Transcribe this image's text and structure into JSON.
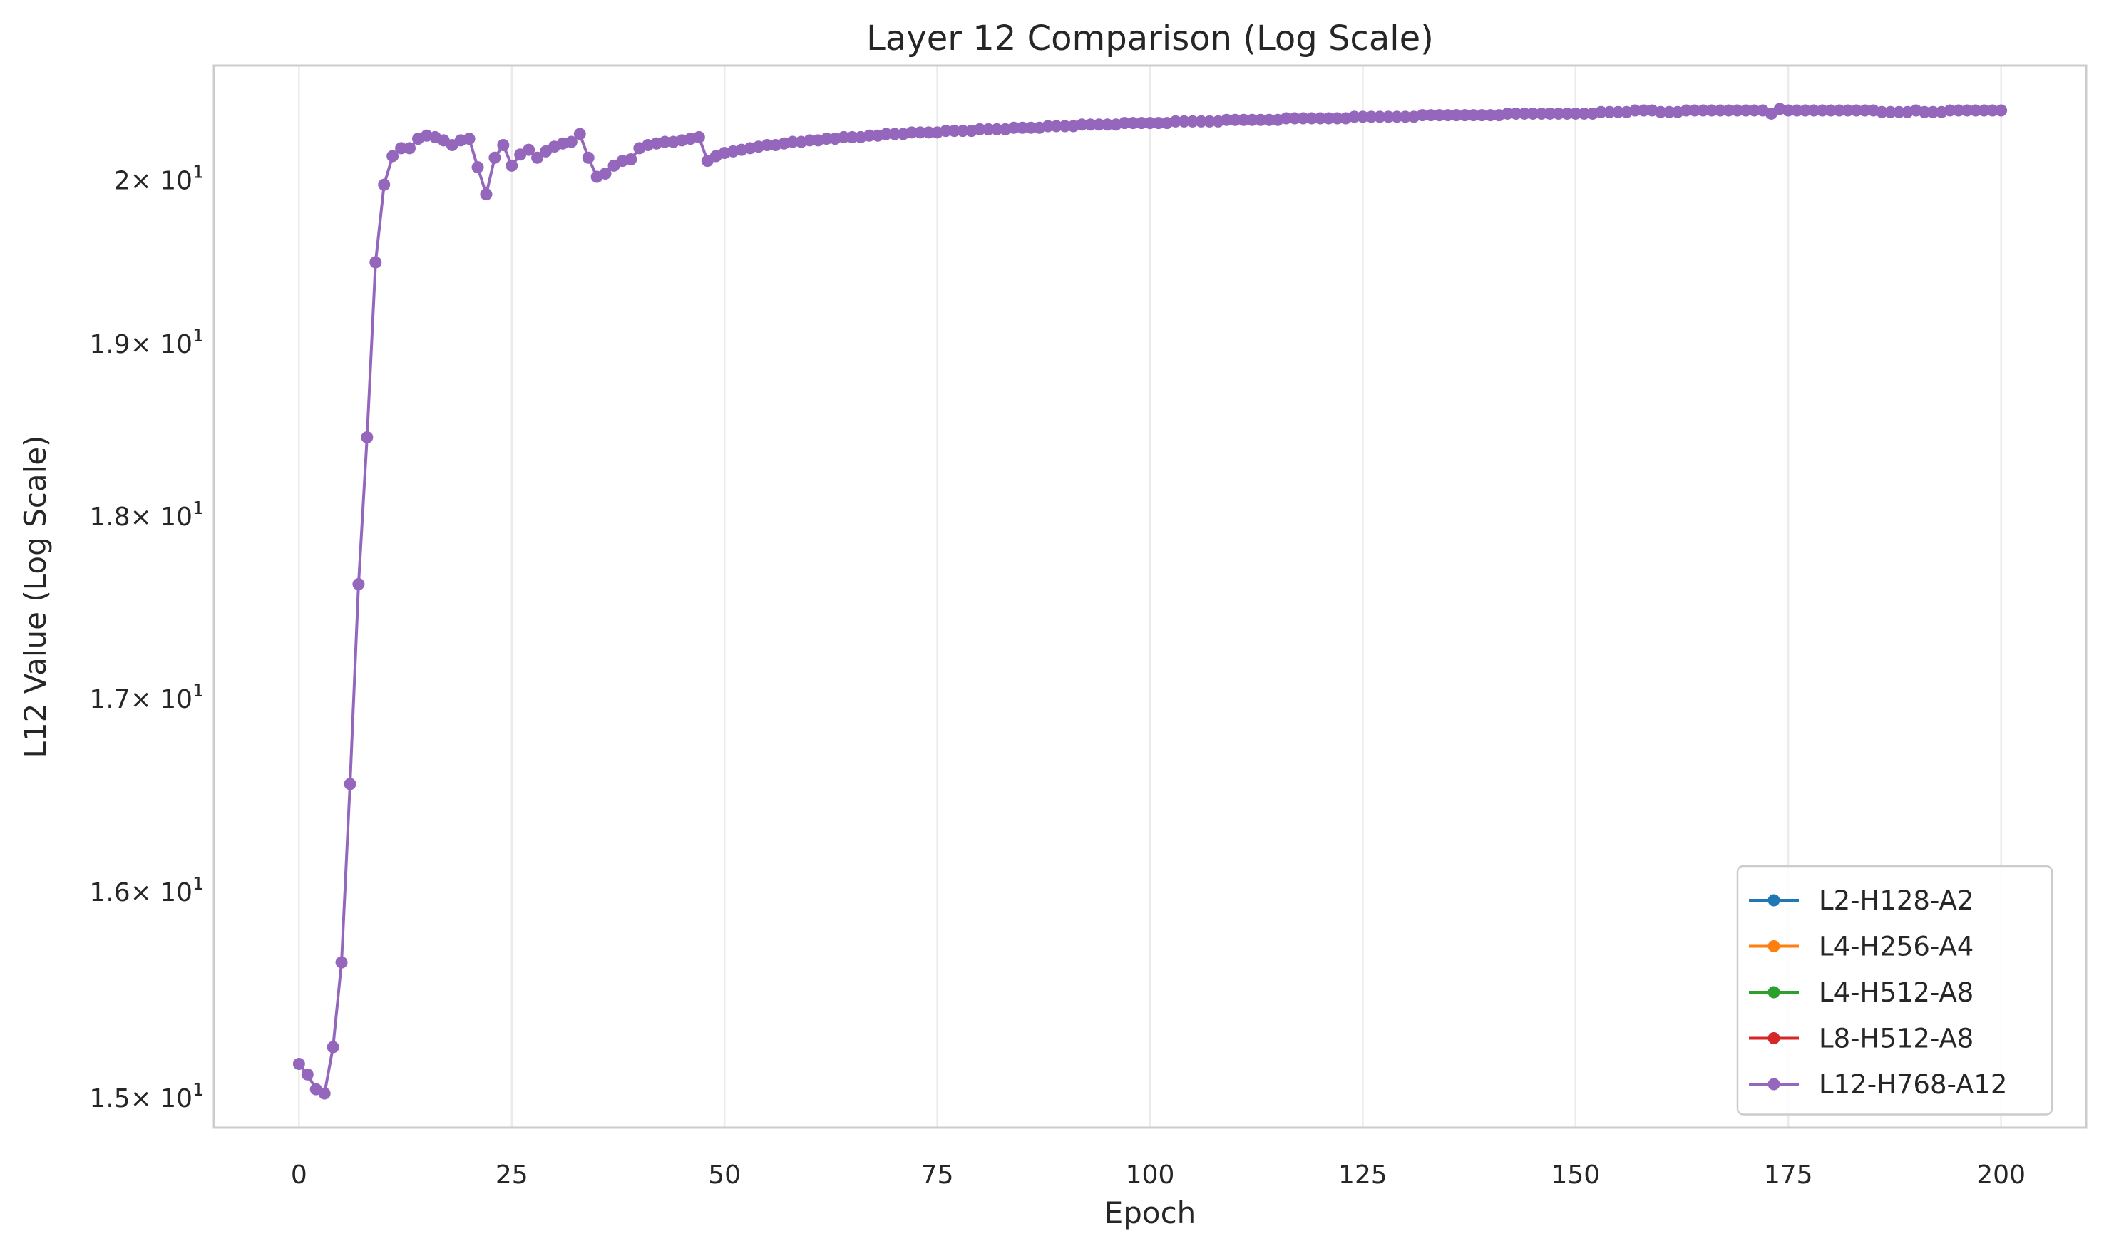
{
  "chart_data": {
    "type": "line",
    "title": "Layer 12 Comparison (Log Scale)",
    "xlabel": "Epoch",
    "ylabel": "L12 Value (Log Scale)",
    "y_scale": "log",
    "xlim": [
      -10,
      210
    ],
    "ylim": [
      14.86,
      20.73
    ],
    "grid": "vertical",
    "legend_position": "bottom-right",
    "x_ticks": [
      0,
      25,
      50,
      75,
      100,
      125,
      150,
      175,
      200
    ],
    "x_tick_labels": [
      "0",
      "25",
      "50",
      "75",
      "100",
      "125",
      "150",
      "175",
      "200"
    ],
    "y_ticks": [
      {
        "value": 15,
        "mantissa": "1.5"
      },
      {
        "value": 16,
        "mantissa": "1.6"
      },
      {
        "value": 17,
        "mantissa": "1.7"
      },
      {
        "value": 18,
        "mantissa": "1.8"
      },
      {
        "value": 19,
        "mantissa": "1.9"
      },
      {
        "value": 20,
        "mantissa": "2"
      }
    ],
    "y_tick_base": "× 10",
    "y_tick_exponent": "1",
    "series": [
      {
        "name": "L2-H128-A2",
        "color": "#1f77b4",
        "points": []
      },
      {
        "name": "L4-H256-A4",
        "color": "#ff7f0e",
        "points": []
      },
      {
        "name": "L4-H512-A8",
        "color": "#2ca02c",
        "points": []
      },
      {
        "name": "L8-H512-A8",
        "color": "#d62728",
        "points": []
      },
      {
        "name": "L12-H768-A12",
        "color": "#9467bd",
        "points": [
          [
            0,
            15.16
          ],
          [
            1,
            15.11
          ],
          [
            2,
            15.04
          ],
          [
            3,
            15.02
          ],
          [
            4,
            15.24
          ],
          [
            5,
            15.65
          ],
          [
            6,
            16.55
          ],
          [
            7,
            17.62
          ],
          [
            8,
            18.45
          ],
          [
            9,
            19.49
          ],
          [
            10,
            19.97
          ],
          [
            11,
            20.15
          ],
          [
            12,
            20.2
          ],
          [
            13,
            20.2
          ],
          [
            14,
            20.26
          ],
          [
            15,
            20.28
          ],
          [
            16,
            20.27
          ],
          [
            17,
            20.25
          ],
          [
            18,
            20.22
          ],
          [
            19,
            20.25
          ],
          [
            20,
            20.26
          ],
          [
            21,
            20.08
          ],
          [
            22,
            19.91
          ],
          [
            23,
            20.14
          ],
          [
            24,
            20.22
          ],
          [
            25,
            20.09
          ],
          [
            26,
            20.16
          ],
          [
            27,
            20.19
          ],
          [
            28,
            20.14
          ],
          [
            29,
            20.18
          ],
          [
            30,
            20.21
          ],
          [
            31,
            20.23
          ],
          [
            32,
            20.24
          ],
          [
            33,
            20.29
          ],
          [
            34,
            20.14
          ],
          [
            35,
            20.02
          ],
          [
            36,
            20.04
          ],
          [
            37,
            20.09
          ],
          [
            38,
            20.12
          ],
          [
            39,
            20.13
          ],
          [
            40,
            20.2
          ],
          [
            41,
            20.22
          ],
          [
            42,
            20.23
          ],
          [
            43,
            20.24
          ],
          [
            44,
            20.24
          ],
          [
            45,
            20.25
          ],
          [
            46,
            20.26
          ],
          [
            47,
            20.27
          ],
          [
            48,
            20.12
          ],
          [
            49,
            20.15
          ],
          [
            50,
            20.17
          ],
          [
            51,
            20.18
          ],
          [
            52,
            20.19
          ],
          [
            53,
            20.2
          ],
          [
            54,
            20.21
          ],
          [
            55,
            20.22
          ],
          [
            56,
            20.22
          ],
          [
            57,
            20.23
          ],
          [
            58,
            20.24
          ],
          [
            59,
            20.24
          ],
          [
            60,
            20.25
          ],
          [
            61,
            20.25
          ],
          [
            62,
            20.26
          ],
          [
            63,
            20.26
          ],
          [
            64,
            20.27
          ],
          [
            65,
            20.27
          ],
          [
            66,
            20.27
          ],
          [
            67,
            20.28
          ],
          [
            68,
            20.28
          ],
          [
            69,
            20.29
          ],
          [
            70,
            20.29
          ],
          [
            71,
            20.29
          ],
          [
            72,
            20.3
          ],
          [
            73,
            20.3
          ],
          [
            74,
            20.3
          ],
          [
            75,
            20.3
          ],
          [
            76,
            20.31
          ],
          [
            77,
            20.31
          ],
          [
            78,
            20.31
          ],
          [
            79,
            20.31
          ],
          [
            80,
            20.32
          ],
          [
            81,
            20.32
          ],
          [
            82,
            20.32
          ],
          [
            83,
            20.32
          ],
          [
            84,
            20.33
          ],
          [
            85,
            20.33
          ],
          [
            86,
            20.33
          ],
          [
            87,
            20.33
          ],
          [
            88,
            20.34
          ],
          [
            89,
            20.34
          ],
          [
            90,
            20.34
          ],
          [
            91,
            20.34
          ],
          [
            92,
            20.35
          ],
          [
            93,
            20.35
          ],
          [
            94,
            20.35
          ],
          [
            95,
            20.35
          ],
          [
            96,
            20.35
          ],
          [
            97,
            20.36
          ],
          [
            98,
            20.36
          ],
          [
            99,
            20.36
          ],
          [
            100,
            20.36
          ],
          [
            101,
            20.36
          ],
          [
            102,
            20.36
          ],
          [
            103,
            20.37
          ],
          [
            104,
            20.37
          ],
          [
            105,
            20.37
          ],
          [
            106,
            20.37
          ],
          [
            107,
            20.37
          ],
          [
            108,
            20.37
          ],
          [
            109,
            20.38
          ],
          [
            110,
            20.38
          ],
          [
            111,
            20.38
          ],
          [
            112,
            20.38
          ],
          [
            113,
            20.38
          ],
          [
            114,
            20.38
          ],
          [
            115,
            20.38
          ],
          [
            116,
            20.39
          ],
          [
            117,
            20.39
          ],
          [
            118,
            20.39
          ],
          [
            119,
            20.39
          ],
          [
            120,
            20.39
          ],
          [
            121,
            20.39
          ],
          [
            122,
            20.39
          ],
          [
            123,
            20.39
          ],
          [
            124,
            20.4
          ],
          [
            125,
            20.4
          ],
          [
            126,
            20.4
          ],
          [
            127,
            20.4
          ],
          [
            128,
            20.4
          ],
          [
            129,
            20.4
          ],
          [
            130,
            20.4
          ],
          [
            131,
            20.4
          ],
          [
            132,
            20.41
          ],
          [
            133,
            20.41
          ],
          [
            134,
            20.41
          ],
          [
            135,
            20.41
          ],
          [
            136,
            20.41
          ],
          [
            137,
            20.41
          ],
          [
            138,
            20.41
          ],
          [
            139,
            20.41
          ],
          [
            140,
            20.41
          ],
          [
            141,
            20.41
          ],
          [
            142,
            20.42
          ],
          [
            143,
            20.42
          ],
          [
            144,
            20.42
          ],
          [
            145,
            20.42
          ],
          [
            146,
            20.42
          ],
          [
            147,
            20.42
          ],
          [
            148,
            20.42
          ],
          [
            149,
            20.42
          ],
          [
            150,
            20.42
          ],
          [
            151,
            20.42
          ],
          [
            152,
            20.42
          ],
          [
            153,
            20.43
          ],
          [
            154,
            20.43
          ],
          [
            155,
            20.43
          ],
          [
            156,
            20.43
          ],
          [
            157,
            20.44
          ],
          [
            158,
            20.44
          ],
          [
            159,
            20.44
          ],
          [
            160,
            20.43
          ],
          [
            161,
            20.43
          ],
          [
            162,
            20.43
          ],
          [
            163,
            20.44
          ],
          [
            164,
            20.44
          ],
          [
            165,
            20.44
          ],
          [
            166,
            20.44
          ],
          [
            167,
            20.44
          ],
          [
            168,
            20.44
          ],
          [
            169,
            20.44
          ],
          [
            170,
            20.44
          ],
          [
            171,
            20.44
          ],
          [
            172,
            20.44
          ],
          [
            173,
            20.42
          ],
          [
            174,
            20.45
          ],
          [
            175,
            20.44
          ],
          [
            176,
            20.44
          ],
          [
            177,
            20.44
          ],
          [
            178,
            20.44
          ],
          [
            179,
            20.44
          ],
          [
            180,
            20.44
          ],
          [
            181,
            20.44
          ],
          [
            182,
            20.44
          ],
          [
            183,
            20.44
          ],
          [
            184,
            20.44
          ],
          [
            185,
            20.44
          ],
          [
            186,
            20.43
          ],
          [
            187,
            20.43
          ],
          [
            188,
            20.43
          ],
          [
            189,
            20.43
          ],
          [
            190,
            20.44
          ],
          [
            191,
            20.43
          ],
          [
            192,
            20.43
          ],
          [
            193,
            20.43
          ],
          [
            194,
            20.44
          ],
          [
            195,
            20.44
          ],
          [
            196,
            20.44
          ],
          [
            197,
            20.44
          ],
          [
            198,
            20.44
          ],
          [
            199,
            20.44
          ],
          [
            200,
            20.44
          ]
        ]
      }
    ]
  }
}
